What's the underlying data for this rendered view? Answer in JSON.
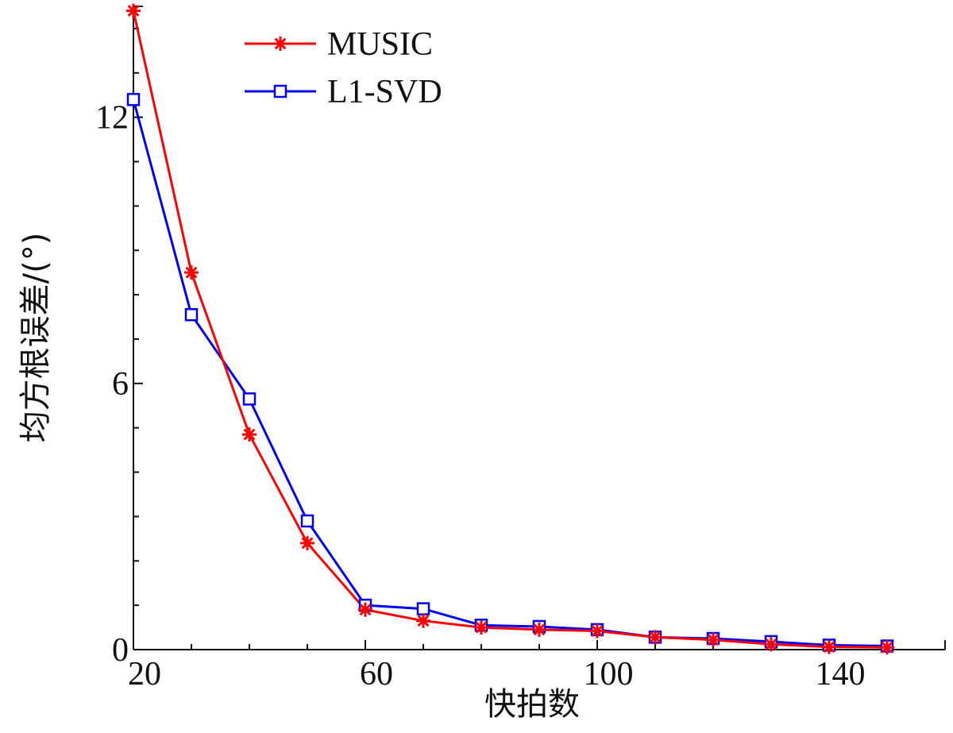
{
  "chart_data": {
    "type": "line",
    "xlabel": "快拍数",
    "ylabel": "均方根误差/(°)",
    "xlim": [
      20,
      160
    ],
    "ylim": [
      0,
      14.5
    ],
    "xticks": [
      20,
      60,
      100,
      140
    ],
    "xtick_labels": [
      "20",
      "60",
      "100",
      "140"
    ],
    "yticks": [
      0,
      6,
      12
    ],
    "ytick_labels": [
      "0",
      "6",
      "12"
    ],
    "grid": false,
    "legend": "top-left",
    "x": [
      20,
      30,
      40,
      50,
      60,
      70,
      80,
      90,
      100,
      110,
      120,
      130,
      140,
      150
    ],
    "series": [
      {
        "name": "MUSIC",
        "color": "#ff0000",
        "marker": "asterisk",
        "values": [
          14.4,
          8.5,
          4.85,
          2.4,
          0.9,
          0.65,
          0.5,
          0.45,
          0.42,
          0.28,
          0.22,
          0.12,
          0.06,
          0.05
        ]
      },
      {
        "name": "L1-SVD",
        "color": "#0000ee",
        "marker": "square",
        "values": [
          12.4,
          7.55,
          5.65,
          2.9,
          1.0,
          0.92,
          0.55,
          0.52,
          0.45,
          0.28,
          0.25,
          0.18,
          0.1,
          0.08
        ]
      }
    ]
  }
}
